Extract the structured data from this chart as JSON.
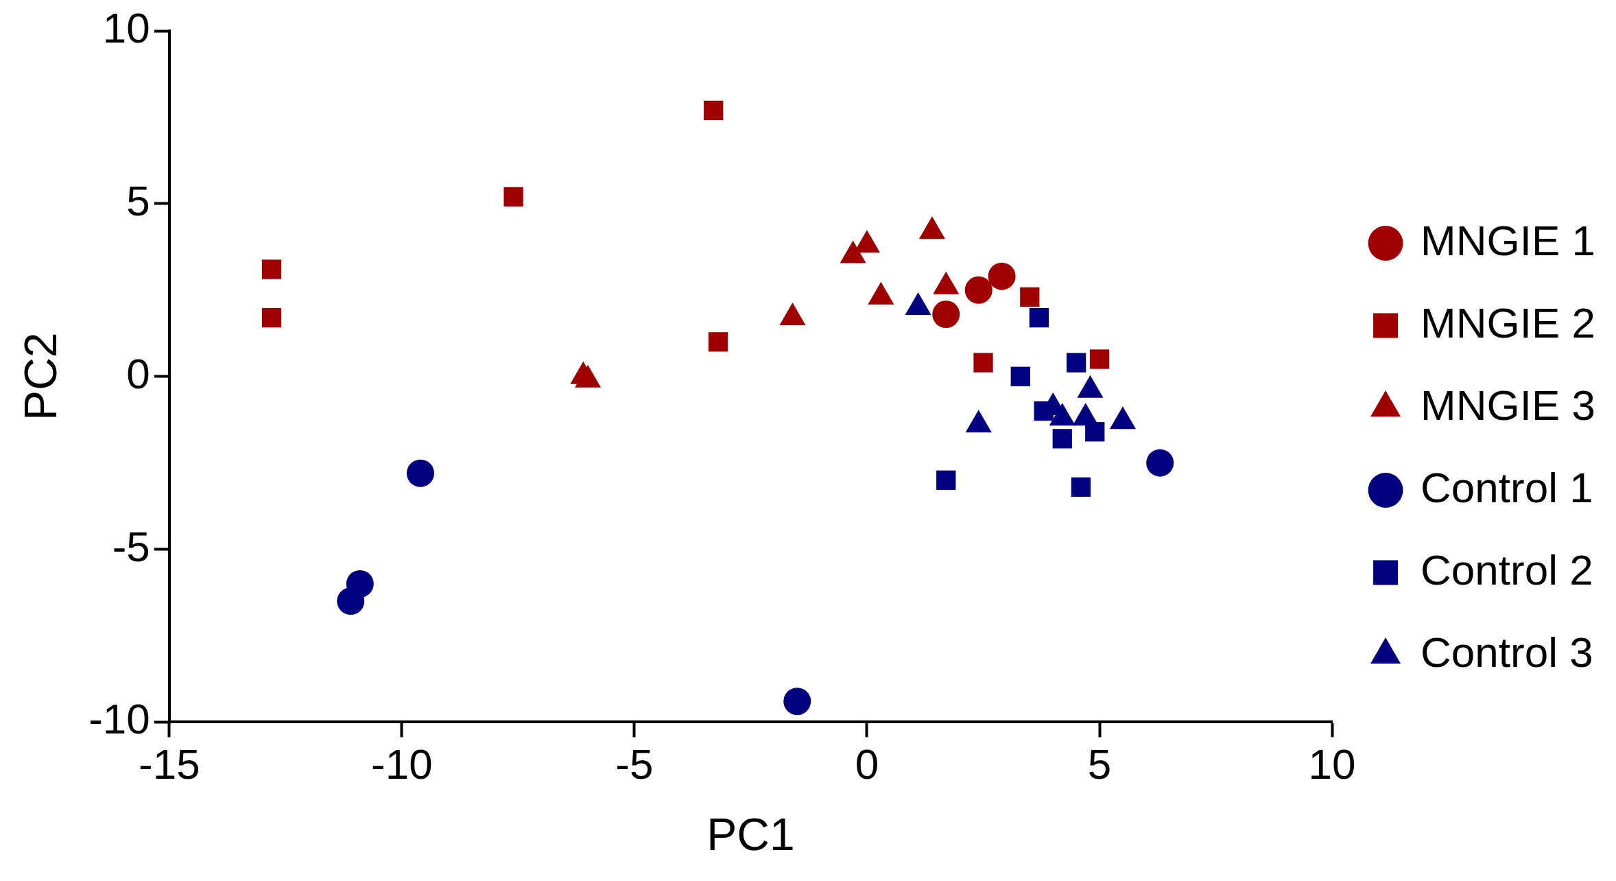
{
  "chart_data": {
    "type": "scatter",
    "xlabel": "PC1",
    "ylabel": "PC2",
    "xlim": [
      -15,
      10
    ],
    "xticks": [
      -15,
      -10,
      -5,
      0,
      5,
      10
    ],
    "ylim": [
      -10,
      10
    ],
    "yticks": [
      -10,
      -5,
      0,
      5,
      10
    ],
    "grid": false,
    "legend": "right",
    "series": [
      {
        "name": "MNGIE 1",
        "color": "#a00000",
        "marker": "circle",
        "x": [
          1.7,
          2.4,
          2.9
        ],
        "values": [
          1.8,
          2.5,
          2.9
        ]
      },
      {
        "name": "MNGIE 2",
        "color": "#a00000",
        "marker": "square",
        "x": [
          -12.8,
          -12.8,
          -7.6,
          -3.3,
          -3.2,
          3.5,
          2.5,
          5.0
        ],
        "values": [
          3.1,
          1.7,
          5.2,
          7.7,
          1.0,
          2.3,
          0.4,
          0.5
        ]
      },
      {
        "name": "MNGIE 3",
        "color": "#a00000",
        "marker": "triangle",
        "x": [
          -6.1,
          -6.0,
          -1.6,
          -0.3,
          0.0,
          1.4,
          0.3,
          1.7
        ],
        "values": [
          0.0,
          -0.1,
          1.7,
          3.5,
          3.8,
          4.2,
          2.3,
          2.6
        ]
      },
      {
        "name": "Control 1",
        "color": "#000080",
        "marker": "circle",
        "x": [
          -9.6,
          -10.9,
          -11.1,
          -1.5,
          6.3
        ],
        "values": [
          -2.8,
          -6.0,
          -6.5,
          -9.4,
          -2.5
        ]
      },
      {
        "name": "Control 2",
        "color": "#000080",
        "marker": "square",
        "x": [
          3.7,
          3.3,
          4.5,
          3.8,
          4.2,
          4.9,
          1.7,
          4.6
        ],
        "values": [
          1.7,
          0.0,
          0.4,
          -1.0,
          -1.8,
          -1.6,
          -3.0,
          -3.2
        ]
      },
      {
        "name": "Control 3",
        "color": "#000080",
        "marker": "triangle",
        "x": [
          1.1,
          2.4,
          4.8,
          5.5,
          4.7,
          4.6,
          4.0,
          4.2
        ],
        "values": [
          2.0,
          -1.4,
          -0.4,
          -1.3,
          -1.2,
          null,
          -0.9,
          -1.2
        ]
      }
    ]
  }
}
